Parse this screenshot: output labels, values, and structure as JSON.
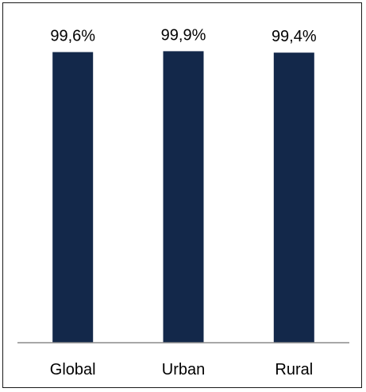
{
  "chart_data": {
    "type": "bar",
    "categories": [
      "Global",
      "Urban",
      "Rural"
    ],
    "values": [
      99.6,
      99.9,
      99.4
    ],
    "value_labels": [
      "99,6%",
      "99,9%",
      "99,4%"
    ],
    "title": "",
    "xlabel": "",
    "ylabel": "",
    "ylim": [
      0,
      100
    ],
    "grid": false,
    "legend": "none",
    "colors": {
      "bar": "#13284a",
      "axis": "#8c8c8c",
      "border": "#1a1a1a",
      "background": "#ffffff"
    }
  }
}
